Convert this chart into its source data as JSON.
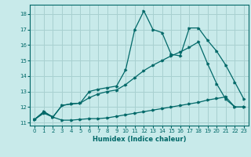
{
  "xlabel": "Humidex (Indice chaleur)",
  "xlim": [
    -0.5,
    23.5
  ],
  "ylim": [
    10.8,
    18.6
  ],
  "xticks": [
    0,
    1,
    2,
    3,
    4,
    5,
    6,
    7,
    8,
    9,
    10,
    11,
    12,
    13,
    14,
    15,
    16,
    17,
    18,
    19,
    20,
    21,
    22,
    23
  ],
  "yticks": [
    11,
    12,
    13,
    14,
    15,
    16,
    17,
    18
  ],
  "background_color": "#c8eaea",
  "grid_color": "#a8d0d0",
  "line_color": "#006868",
  "line1_x": [
    0,
    1,
    2,
    3,
    4,
    5,
    6,
    7,
    8,
    9,
    10,
    11,
    12,
    13,
    14,
    15,
    16,
    17,
    18,
    19,
    20,
    21,
    22,
    23
  ],
  "line1_y": [
    11.2,
    11.6,
    11.35,
    11.15,
    11.15,
    11.2,
    11.25,
    11.25,
    11.3,
    11.4,
    11.5,
    11.6,
    11.7,
    11.8,
    11.9,
    12.0,
    12.1,
    12.2,
    12.3,
    12.45,
    12.55,
    12.65,
    12.0,
    12.0
  ],
  "line2_x": [
    0,
    1,
    2,
    3,
    4,
    5,
    6,
    7,
    8,
    9,
    10,
    11,
    12,
    13,
    14,
    15,
    16,
    17,
    18,
    19,
    20,
    21,
    22,
    23
  ],
  "line2_y": [
    11.2,
    11.7,
    11.35,
    12.1,
    12.2,
    12.25,
    13.0,
    13.15,
    13.25,
    13.35,
    14.4,
    17.0,
    18.2,
    17.0,
    16.8,
    15.4,
    15.3,
    17.1,
    17.1,
    16.3,
    15.6,
    14.7,
    13.6,
    12.5
  ],
  "line3_x": [
    0,
    1,
    2,
    3,
    4,
    5,
    6,
    7,
    8,
    9,
    10,
    11,
    12,
    13,
    14,
    15,
    16,
    17,
    18,
    19,
    20,
    21,
    22,
    23
  ],
  "line3_y": [
    11.2,
    11.7,
    11.35,
    12.1,
    12.2,
    12.25,
    12.6,
    12.85,
    13.0,
    13.1,
    13.45,
    13.9,
    14.35,
    14.7,
    15.0,
    15.3,
    15.55,
    15.85,
    16.2,
    14.8,
    13.5,
    12.5,
    12.0,
    12.0
  ]
}
